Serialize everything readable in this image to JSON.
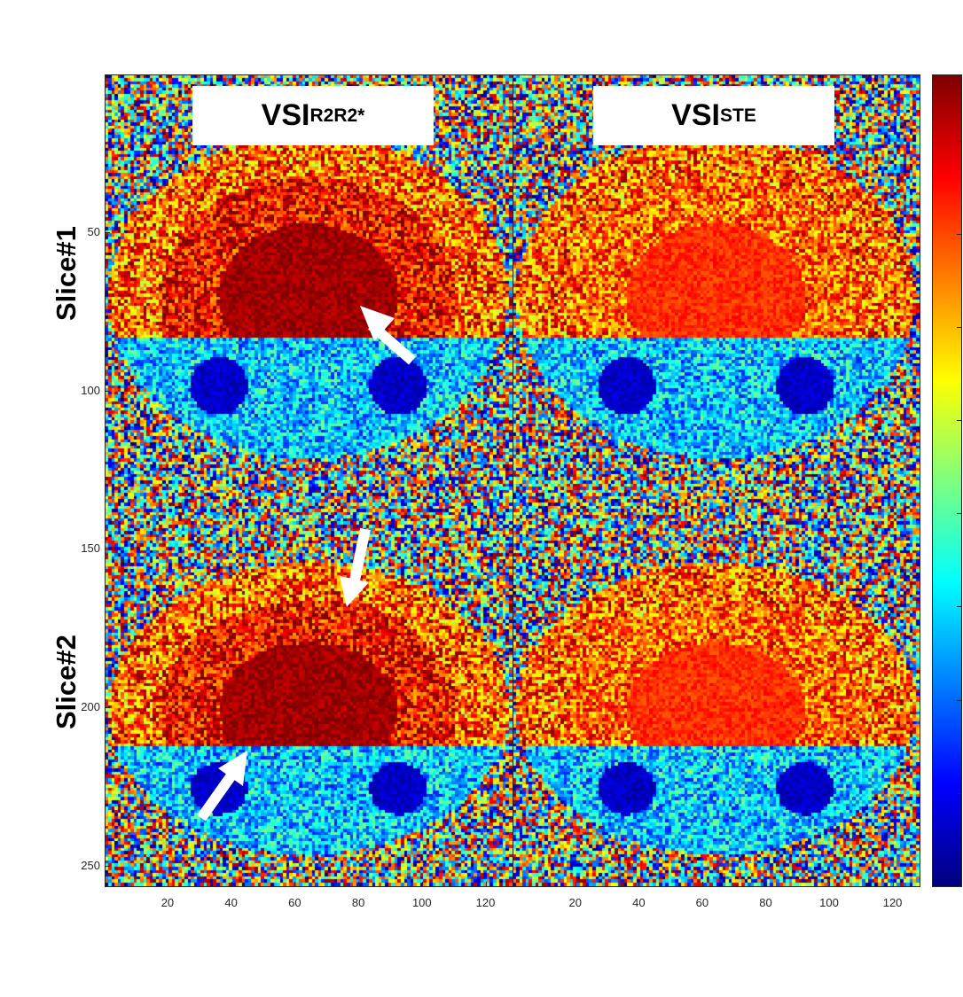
{
  "panels": [
    {
      "title_main": "VSI",
      "title_sub": "R2R2*"
    },
    {
      "title_main": "VSI",
      "title_sub": "STE"
    }
  ],
  "row_labels": [
    "Slice#1",
    "Slice#2"
  ],
  "y_ticks": [
    "50",
    "100",
    "150",
    "200",
    "250"
  ],
  "x_ticks": [
    "20",
    "40",
    "60",
    "80",
    "100",
    "120"
  ],
  "colormap": "jet",
  "colors": {
    "frame": "#262626",
    "arrow": "#ffffff",
    "background": "#ffffff"
  }
}
